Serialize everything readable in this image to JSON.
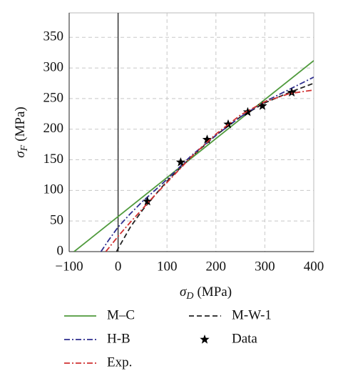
{
  "chart_data": {
    "type": "line",
    "xlabel": {
      "symbol": "σ",
      "subscript": "D",
      "unit": "(MPa)"
    },
    "ylabel": {
      "symbol": "σ",
      "subscript": "F",
      "unit": "(MPa)"
    },
    "xlim": [
      -100,
      400
    ],
    "ylim": [
      0,
      390
    ],
    "xticks": [
      {
        "value": -100,
        "label": "−100"
      },
      0,
      100,
      200,
      300,
      400
    ],
    "yticks": [
      0,
      50,
      100,
      150,
      200,
      250,
      300,
      350
    ],
    "grid": true,
    "series": [
      {
        "name": "M–C",
        "color": "#4f9a3c",
        "dash": "solid",
        "x": [
          -90,
          400
        ],
        "values": [
          0,
          312
        ]
      },
      {
        "name": "M-W-1",
        "color": "#222222",
        "dash": "dash",
        "x": [
          -3,
          0,
          25,
          50,
          75,
          100,
          150,
          200,
          250,
          300,
          350,
          400
        ],
        "values": [
          0,
          5,
          40,
          68,
          92,
          115,
          155,
          190,
          220,
          243,
          260,
          275
        ]
      },
      {
        "name": "H-B",
        "color": "#2f2f8f",
        "dash": "dashdot",
        "x": [
          -35,
          -20,
          0,
          25,
          50,
          75,
          100,
          150,
          200,
          250,
          300,
          350,
          400
        ],
        "values": [
          0,
          18,
          40,
          62,
          82,
          100,
          118,
          157,
          190,
          220,
          245,
          265,
          285
        ]
      },
      {
        "name": "Data",
        "color": "#000000",
        "dash": "marker",
        "x": [
          60,
          128,
          182,
          225,
          265,
          295,
          355
        ],
        "values": [
          82,
          146,
          183,
          208,
          228,
          238,
          260
        ]
      },
      {
        "name": "Exp.",
        "color": "#d03030",
        "dash": "dashdot",
        "x": [
          -25,
          0,
          25,
          50,
          75,
          100,
          150,
          200,
          250,
          300,
          350,
          400
        ],
        "values": [
          0,
          25,
          48,
          70,
          92,
          113,
          155,
          192,
          223,
          245,
          258,
          264
        ]
      }
    ]
  }
}
